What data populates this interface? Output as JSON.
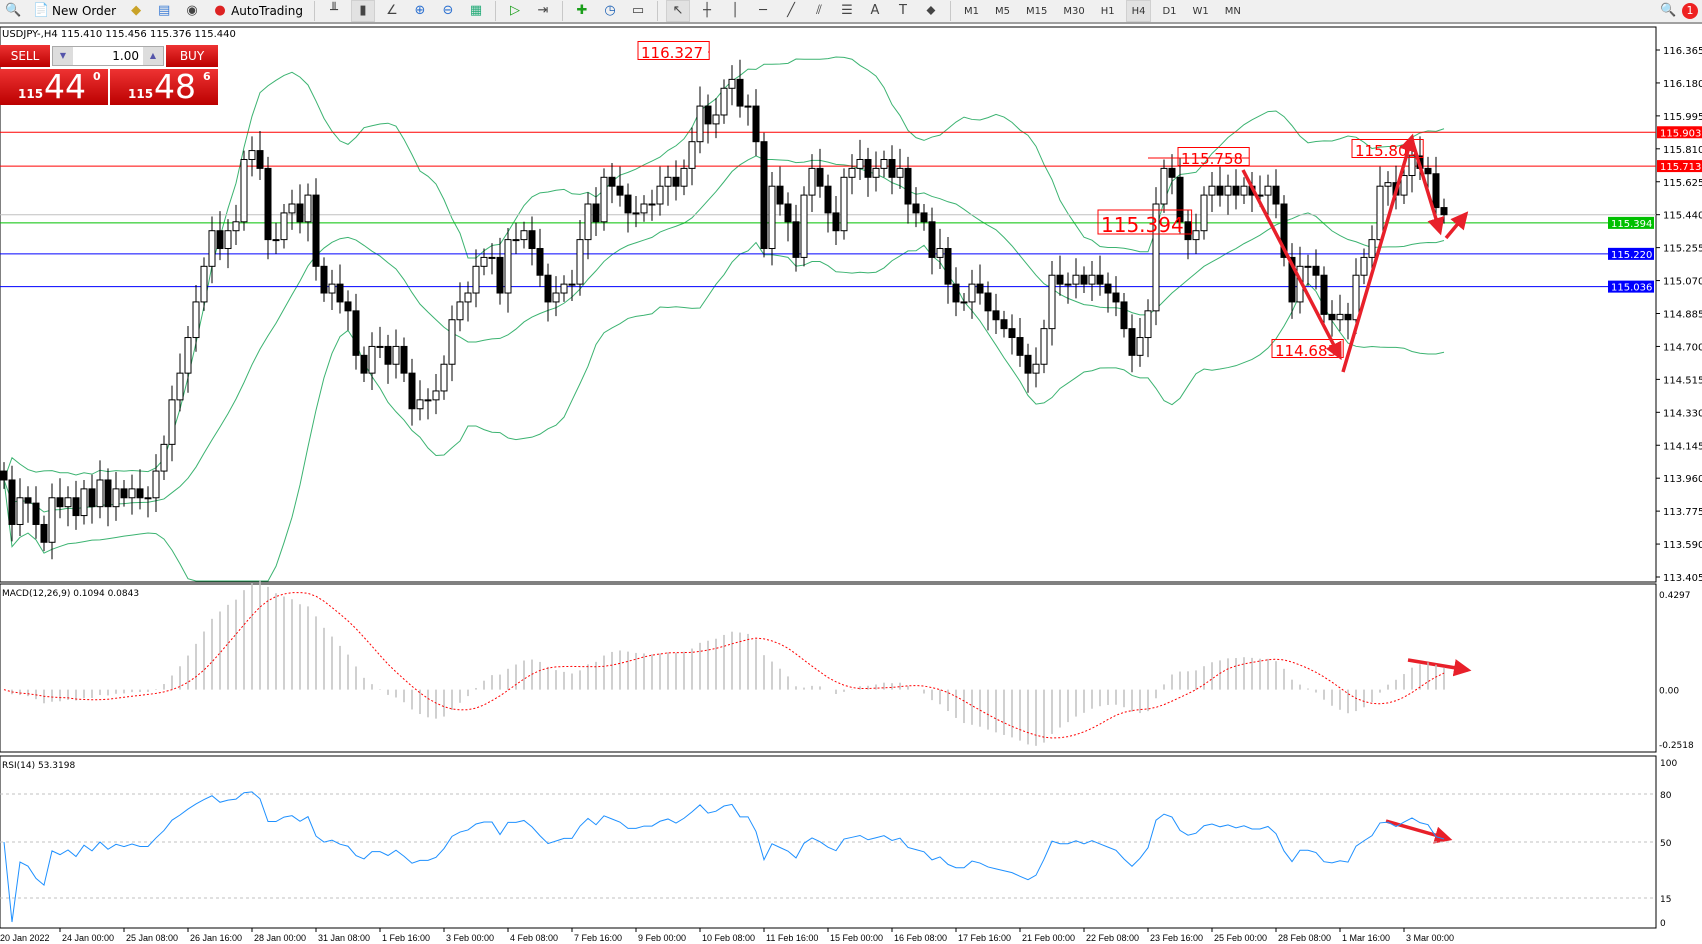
{
  "toolbar": {
    "new_order": "New Order",
    "autotrading": "AutoTrading",
    "timeframes": [
      "M1",
      "M5",
      "M15",
      "M30",
      "H1",
      "H4",
      "D1",
      "W1",
      "MN"
    ],
    "active_timeframe": "H4",
    "notification_count": "1",
    "icons": [
      "search-icon",
      "new-order-icon",
      "metaeditor-icon",
      "market-icon",
      "signals-icon",
      "autotrading-icon",
      "bar-chart-icon",
      "candlestick-icon",
      "line-chart-icon",
      "zoom-in-icon",
      "zoom-out-icon",
      "tile-windows-icon",
      "chart-shift-icon",
      "autoscroll-icon",
      "indicators-icon",
      "periods-icon",
      "templates-icon",
      "cursor-icon",
      "crosshair-icon",
      "vertical-line-icon",
      "horizontal-line-icon",
      "trendline-icon",
      "equidistant-channel-icon",
      "fibonacci-icon",
      "text-icon",
      "text-label-icon",
      "arrows-icon"
    ]
  },
  "header": {
    "symbol_line": "USDJPY-,H4  115.410 115.456 115.376 115.440"
  },
  "trade_panel": {
    "sell_label": "SELL",
    "buy_label": "BUY",
    "lot": "1.00",
    "sell_price": {
      "small": "115",
      "big": "44",
      "tiny": "0"
    },
    "buy_price": {
      "small": "115",
      "big": "48",
      "tiny": "6"
    }
  },
  "chart_data": [
    {
      "type": "candlestick",
      "symbol": "USDJPY-",
      "timeframe": "H4",
      "ylim": [
        113.405,
        116.365
      ],
      "y_ticks": [
        "116.365",
        "116.180",
        "115.995",
        "115.810",
        "115.625",
        "115.440",
        "115.255",
        "115.070",
        "114.885",
        "114.700",
        "114.515",
        "114.330",
        "114.145",
        "113.960",
        "113.775",
        "113.590",
        "113.405"
      ],
      "x_ticks": [
        "20 Jan 2022",
        "24 Jan 00:00",
        "25 Jan 08:00",
        "26 Jan 16:00",
        "28 Jan 00:00",
        "31 Jan 08:00",
        "1 Feb 16:00",
        "3 Feb 00:00",
        "4 Feb 08:00",
        "7 Feb 16:00",
        "9 Feb 00:00",
        "10 Feb 08:00",
        "11 Feb 16:00",
        "15 Feb 00:00",
        "16 Feb 08:00",
        "17 Feb 16:00",
        "21 Feb 00:00",
        "22 Feb 08:00",
        "23 Feb 16:00",
        "25 Feb 00:00",
        "28 Feb 08:00",
        "1 Mar 16:00",
        "3 Mar 00:00"
      ],
      "closes": [
        113.95,
        113.7,
        113.85,
        113.82,
        113.7,
        113.6,
        113.85,
        113.8,
        113.85,
        113.75,
        113.9,
        113.8,
        113.95,
        113.8,
        113.9,
        113.85,
        113.9,
        113.85,
        113.85,
        114.0,
        114.15,
        114.4,
        114.55,
        114.75,
        114.95,
        115.15,
        115.35,
        115.25,
        115.35,
        115.4,
        115.75,
        115.8,
        115.7,
        115.3,
        115.3,
        115.45,
        115.5,
        115.4,
        115.55,
        115.15,
        115.0,
        115.05,
        114.95,
        114.9,
        114.65,
        114.55,
        114.7,
        114.7,
        114.6,
        114.7,
        114.55,
        114.35,
        114.4,
        114.4,
        114.45,
        114.6,
        114.85,
        114.95,
        115.0,
        115.15,
        115.2,
        115.2,
        115.0,
        115.3,
        115.3,
        115.35,
        115.25,
        115.1,
        114.95,
        115.0,
        115.05,
        115.05,
        115.3,
        115.5,
        115.4,
        115.65,
        115.6,
        115.55,
        115.45,
        115.45,
        115.5,
        115.5,
        115.6,
        115.65,
        115.6,
        115.7,
        115.85,
        116.05,
        115.95,
        116.0,
        116.15,
        116.2,
        116.05,
        116.05,
        115.85,
        115.25,
        115.6,
        115.5,
        115.4,
        115.2,
        115.55,
        115.7,
        115.6,
        115.45,
        115.35,
        115.65,
        115.7,
        115.75,
        115.65,
        115.7,
        115.75,
        115.65,
        115.7,
        115.5,
        115.45,
        115.4,
        115.2,
        115.25,
        115.05,
        114.95,
        114.95,
        115.05,
        115.0,
        114.9,
        114.85,
        114.8,
        114.75,
        114.65,
        114.55,
        114.6,
        114.8,
        115.1,
        115.05,
        115.05,
        115.1,
        115.05,
        115.1,
        115.05,
        115.0,
        114.95,
        114.8,
        114.65,
        114.75,
        114.9,
        115.5,
        115.7,
        115.65,
        115.4,
        115.3,
        115.35,
        115.55,
        115.6,
        115.55,
        115.6,
        115.55,
        115.6,
        115.55,
        115.55,
        115.6,
        115.5,
        115.2,
        114.95,
        115.15,
        115.15,
        115.1,
        114.88,
        114.85,
        114.88,
        114.85,
        115.1,
        115.2,
        115.3,
        115.6,
        115.62,
        115.55,
        115.66,
        115.77,
        115.7,
        115.67,
        115.48,
        115.44
      ],
      "bid": "115.440",
      "levels": [
        {
          "value": "115.903",
          "color": "#ff0000"
        },
        {
          "value": "115.713",
          "color": "#ff0000"
        },
        {
          "value": "115.394",
          "color": "#00c000"
        },
        {
          "value": "115.220",
          "color": "#0000ff"
        },
        {
          "value": "115.036",
          "color": "#0000ff"
        }
      ],
      "annotations": [
        "116.327",
        "115.758",
        "115.394",
        "115.803",
        "114.683"
      ],
      "bollinger": {
        "period": 20,
        "deviation": 2,
        "color": "#3cb371"
      }
    },
    {
      "type": "bar+line",
      "title": "MACD(12,26,9) 0.1094 0.0843",
      "ylim": [
        -0.2518,
        0.4297
      ],
      "y_ticks": [
        "0.4297",
        "0.00",
        "-0.2518"
      ],
      "histogram_color": "#c0c0c0",
      "signal_color": "#ff0000"
    },
    {
      "type": "line",
      "title": "RSI(14) 53.3198",
      "ylim": [
        0,
        100
      ],
      "y_ticks": [
        "100",
        "80",
        "50",
        "15",
        "0"
      ],
      "levels": [
        80,
        50,
        15
      ],
      "color": "#1e90ff"
    }
  ],
  "colors": {
    "arrow": "#e8202a",
    "annotation": "#ff0000"
  }
}
